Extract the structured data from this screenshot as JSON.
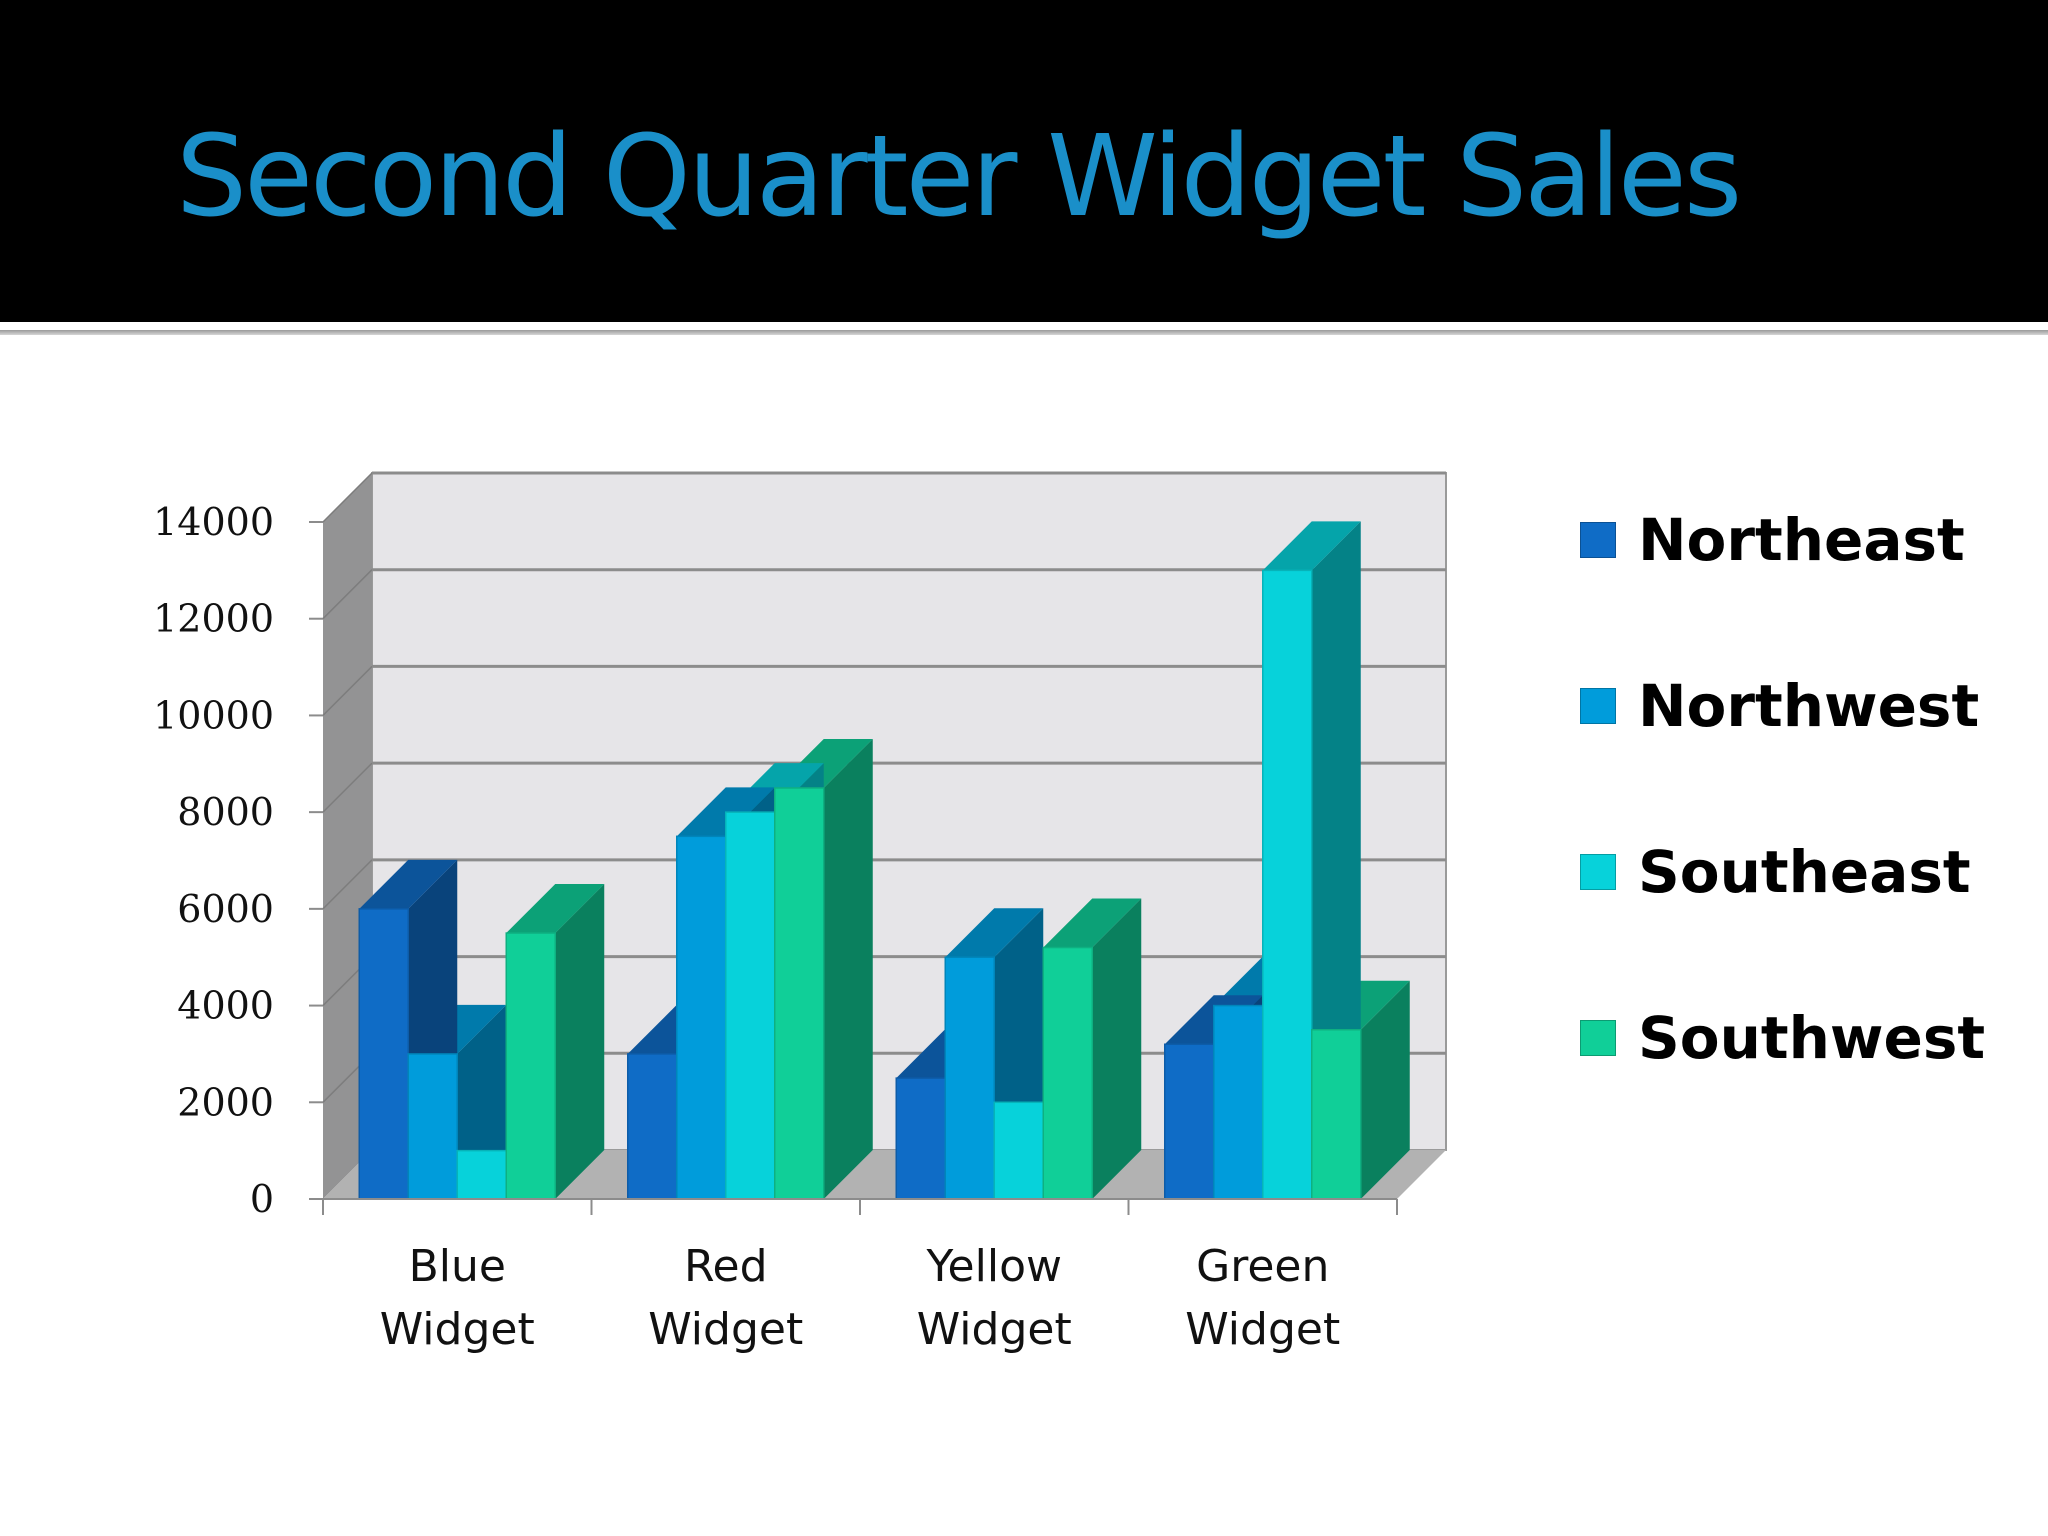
{
  "slide": {
    "title": "Second Quarter Widget Sales"
  },
  "legend": [
    {
      "label": "Northeast",
      "color": "#0f6cc6"
    },
    {
      "label": "Northwest",
      "color": "#009cdb"
    },
    {
      "label": "Southeast",
      "color": "#07d2da"
    },
    {
      "label": "Southwest",
      "color": "#10cf98"
    }
  ],
  "axis": {
    "y_ticks": [
      "0",
      "2000",
      "4000",
      "6000",
      "8000",
      "10000",
      "12000",
      "14000"
    ],
    "x_categories": [
      {
        "line1": "Blue",
        "line2": "Widget"
      },
      {
        "line1": "Red",
        "line2": "Widget"
      },
      {
        "line1": "Yellow",
        "line2": "Widget"
      },
      {
        "line1": "Green",
        "line2": "Widget"
      }
    ]
  },
  "chart_data": {
    "type": "bar",
    "title": "Second Quarter Widget Sales",
    "categories": [
      "Blue Widget",
      "Red Widget",
      "Yellow Widget",
      "Green Widget"
    ],
    "series": [
      {
        "name": "Northeast",
        "color": "#0f6cc6",
        "values": [
          6000,
          3000,
          2500,
          3200
        ]
      },
      {
        "name": "Northwest",
        "color": "#009cdb",
        "values": [
          3000,
          7500,
          5000,
          4000
        ]
      },
      {
        "name": "Southeast",
        "color": "#07d2da",
        "values": [
          1000,
          8000,
          2000,
          13000
        ]
      },
      {
        "name": "Southwest",
        "color": "#10cf98",
        "values": [
          5500,
          8500,
          5200,
          3500
        ]
      }
    ],
    "xlabel": "",
    "ylabel": "",
    "ylim": [
      0,
      14000
    ],
    "y_ticks": [
      0,
      2000,
      4000,
      6000,
      8000,
      10000,
      12000,
      14000
    ],
    "grid": true,
    "style": "3d-clustered-column",
    "legend_position": "right"
  }
}
